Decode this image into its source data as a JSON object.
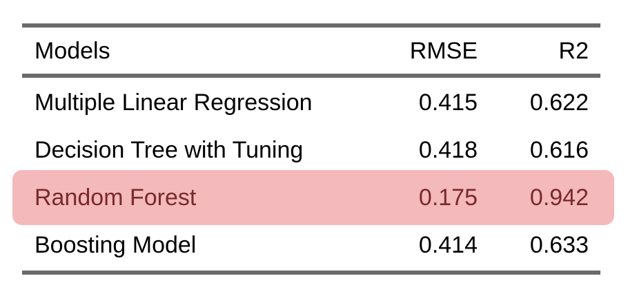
{
  "table": {
    "headers": {
      "model": "Models",
      "rmse": "RMSE",
      "r2": "R2"
    },
    "rows": [
      {
        "model": "Multiple Linear Regression",
        "rmse": "0.415",
        "r2": "0.622",
        "highlighted": false
      },
      {
        "model": "Decision Tree with Tuning",
        "rmse": "0.418",
        "r2": "0.616",
        "highlighted": false
      },
      {
        "model": "Random Forest",
        "rmse": "0.175",
        "r2": "0.942",
        "highlighted": true
      },
      {
        "model": "Boosting Model",
        "rmse": "0.414",
        "r2": "0.633",
        "highlighted": false
      }
    ]
  },
  "colors": {
    "rule": "#6b6b6b",
    "highlight_background": "#f4b9ba",
    "highlight_text": "#7a2a2c",
    "text": "#000000"
  }
}
